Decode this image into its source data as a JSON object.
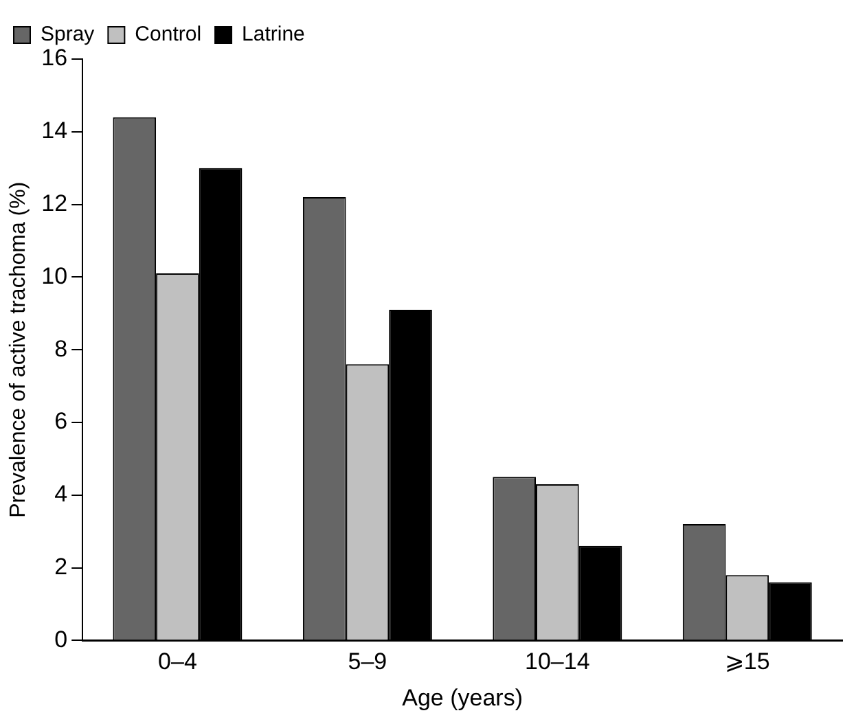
{
  "chart_data": {
    "type": "bar",
    "xlabel": "Age (years)",
    "ylabel": "Prevalence of active trachoma (%)",
    "categories": [
      "0–4",
      "5–9",
      "10–14",
      "⩾15"
    ],
    "series": [
      {
        "name": "Spray",
        "color": "#666666",
        "values": [
          14.4,
          12.2,
          4.5,
          3.2
        ]
      },
      {
        "name": "Control",
        "color": "#c0c0c0",
        "values": [
          10.1,
          7.6,
          4.3,
          1.8
        ]
      },
      {
        "name": "Latrine",
        "color": "#000000",
        "values": [
          13.0,
          9.1,
          2.6,
          1.6
        ]
      }
    ],
    "ylim": [
      0,
      16
    ],
    "yticks": [
      0,
      2,
      4,
      6,
      8,
      10,
      12,
      14,
      16
    ],
    "grid": false,
    "legend": "top left"
  }
}
